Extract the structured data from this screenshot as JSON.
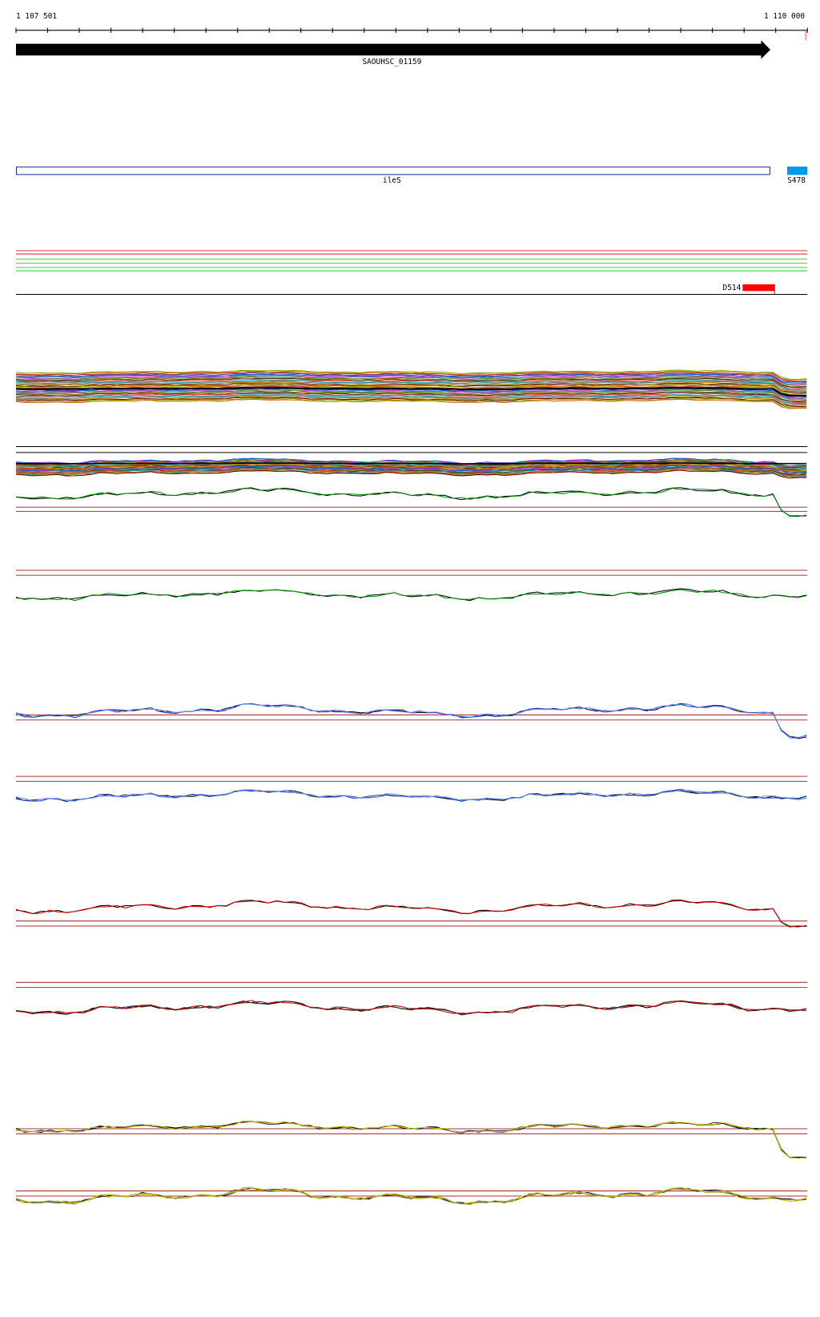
{
  "ruler": {
    "start": "1 107 501",
    "end": "1 110 000"
  },
  "features": {
    "gene": "SAOUHSC_01159",
    "cds": "ileS",
    "small_right": "S478",
    "region": "D514"
  }
}
